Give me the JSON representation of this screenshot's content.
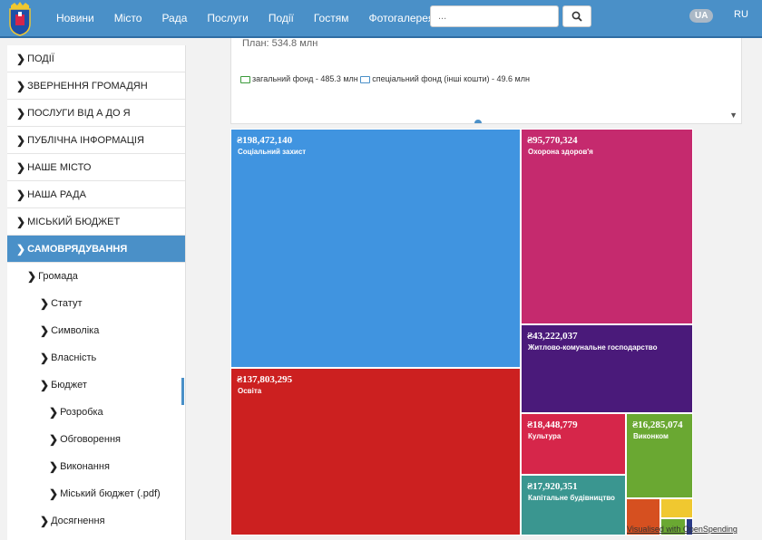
{
  "header": {
    "nav": [
      "Новини",
      "Місто",
      "Рада",
      "Послуги",
      "Події",
      "Гостям",
      "Фотогалерея"
    ],
    "search": {
      "placeholder": "..."
    },
    "langs": {
      "active": "UA",
      "other": "RU"
    }
  },
  "sidebar": {
    "items": [
      {
        "label": "ПОДІЇ"
      },
      {
        "label": "ЗВЕРНЕННЯ ГРОМАДЯН"
      },
      {
        "label": "ПОСЛУГИ ВІД А ДО Я"
      },
      {
        "label": "ПУБЛІЧНА ІНФОРМАЦІЯ"
      },
      {
        "label": "НАШЕ МІСТО"
      },
      {
        "label": "НАША РАДА"
      },
      {
        "label": "МІСЬКИЙ БЮДЖЕТ"
      },
      {
        "label": "САМОВРЯДУВАННЯ"
      }
    ],
    "sub": [
      {
        "label": "Громада",
        "level": 1
      },
      {
        "label": "Статут",
        "level": 2
      },
      {
        "label": "Символіка",
        "level": 2
      },
      {
        "label": "Власність",
        "level": 2
      },
      {
        "label": "Бюджет",
        "level": 2
      },
      {
        "label": "Розробка",
        "level": 3
      },
      {
        "label": "Обговорення",
        "level": 3
      },
      {
        "label": "Виконання",
        "level": 3
      },
      {
        "label": "Міський бюджет (.pdf)",
        "level": 3
      },
      {
        "label": "Досягнення",
        "level": 2
      }
    ]
  },
  "info": {
    "plan_label": "План:",
    "plan_value": "534.8 млн",
    "general_fund": "загальний фонд - 485.3 млн",
    "special_fund": "спеціальний фонд (інші кошти) - 49.6 млн"
  },
  "treemap": {
    "tiles": [
      {
        "amount": "₴198,472,140",
        "label": "Соціальний захист",
        "color": "#4094e0"
      },
      {
        "amount": "₴137,803,295",
        "label": "Освіта",
        "color": "#cc2020"
      },
      {
        "amount": "₴95,770,324",
        "label": "Охорона здоров'я",
        "color": "#c52a6e"
      },
      {
        "amount": "₴43,222,037",
        "label": "Житлово-комунальне господарство",
        "color": "#4a1a7a"
      },
      {
        "amount": "₴18,448,779",
        "label": "Культура",
        "color": "#d6264a"
      },
      {
        "amount": "₴16,285,074",
        "label": "Виконком",
        "color": "#6aa832"
      },
      {
        "amount": "₴17,920,351",
        "label": "Капітальне будівництво",
        "color": "#3a9690"
      }
    ],
    "small_colors": [
      "#d65020",
      "#f0c830",
      "#6aa832",
      "#2a3a88"
    ],
    "credit": "Visualised with OpenSpending"
  }
}
